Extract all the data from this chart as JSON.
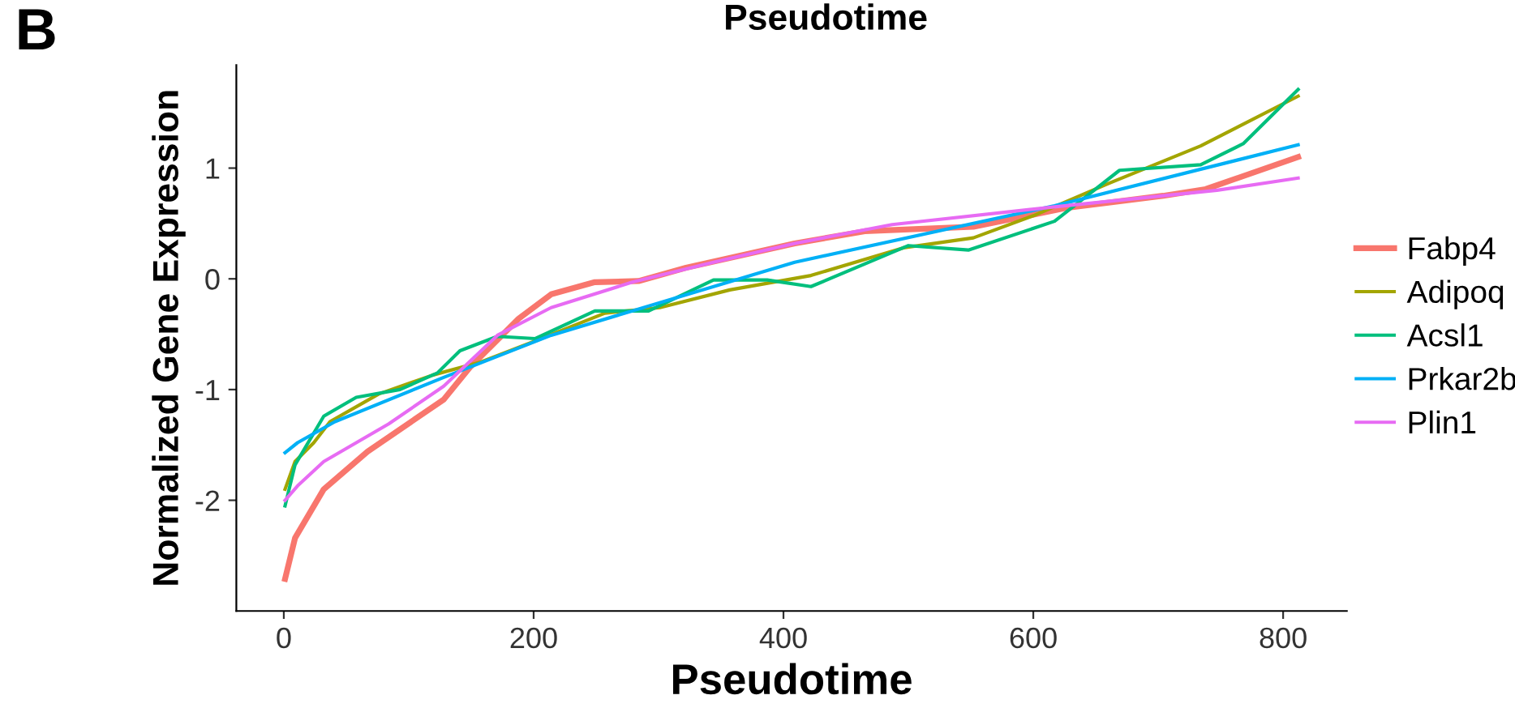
{
  "chart_data": {
    "type": "line",
    "title": "Pseudotime",
    "xlabel": "Pseudotime",
    "ylabel": "Normalized Gene Expression",
    "annotations": [
      "B"
    ],
    "xlim": [
      -38,
      851
    ],
    "ylim": [
      -3.0,
      1.93
    ],
    "xticks": [
      0,
      200,
      400,
      600,
      800
    ],
    "yticks": [
      -2,
      -1,
      0,
      1
    ],
    "grid": false,
    "legend": "right",
    "marker": "none",
    "line_style": "solid",
    "series": [
      {
        "name": "Fabp4",
        "color": "#f8766d",
        "x": [
          1,
          9,
          32,
          67,
          128,
          149,
          188,
          214,
          249,
          284,
          322,
          409,
          465,
          552,
          626,
          704,
          738,
          812
        ],
        "values": [
          -2.71,
          -2.34,
          -1.9,
          -1.56,
          -1.09,
          -0.8,
          -0.36,
          -0.14,
          -0.03,
          -0.02,
          0.1,
          0.32,
          0.43,
          0.47,
          0.64,
          0.75,
          0.81,
          1.1
        ]
      },
      {
        "name": "Adipoq",
        "color": "#a3a500",
        "x": [
          1,
          9,
          24,
          37,
          76,
          119,
          158,
          197,
          257,
          301,
          357,
          422,
          496,
          552,
          600,
          660,
          734,
          812
        ],
        "values": [
          -1.9,
          -1.65,
          -1.48,
          -1.29,
          -1.04,
          -0.87,
          -0.75,
          -0.58,
          -0.31,
          -0.26,
          -0.1,
          0.03,
          0.28,
          0.37,
          0.57,
          0.86,
          1.2,
          1.65
        ]
      },
      {
        "name": "Acsl1",
        "color": "#00bf7d",
        "x": [
          1,
          9,
          32,
          58,
          93,
          123,
          141,
          171,
          201,
          249,
          292,
          344,
          387,
          422,
          500,
          548,
          617,
          669,
          734,
          768,
          812
        ],
        "values": [
          -2.05,
          -1.68,
          -1.24,
          -1.07,
          -1.0,
          -0.85,
          -0.65,
          -0.52,
          -0.54,
          -0.29,
          -0.29,
          -0.01,
          -0.01,
          -0.07,
          0.3,
          0.26,
          0.52,
          0.98,
          1.03,
          1.22,
          1.71
        ]
      },
      {
        "name": "Prkar2b",
        "color": "#00b0f6",
        "x": [
          1,
          11,
          41,
          128,
          214,
          409,
          617,
          812
        ],
        "values": [
          -1.57,
          -1.48,
          -1.29,
          -0.89,
          -0.51,
          0.15,
          0.66,
          1.21
        ]
      },
      {
        "name": "Plin1",
        "color": "#e76bf3",
        "x": [
          1,
          11,
          32,
          84,
          128,
          171,
          214,
          279,
          344,
          409,
          487,
          617,
          747,
          812
        ],
        "values": [
          -2.0,
          -1.87,
          -1.65,
          -1.31,
          -0.97,
          -0.51,
          -0.26,
          -0.03,
          0.15,
          0.32,
          0.49,
          0.65,
          0.8,
          0.91
        ]
      }
    ]
  }
}
